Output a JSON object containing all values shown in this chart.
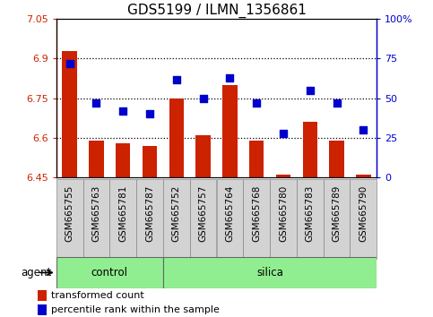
{
  "title": "GDS5199 / ILMN_1356861",
  "samples": [
    "GSM665755",
    "GSM665763",
    "GSM665781",
    "GSM665787",
    "GSM665752",
    "GSM665757",
    "GSM665764",
    "GSM665768",
    "GSM665780",
    "GSM665783",
    "GSM665789",
    "GSM665790"
  ],
  "bar_values": [
    6.93,
    6.59,
    6.58,
    6.57,
    6.75,
    6.61,
    6.8,
    6.59,
    6.46,
    6.66,
    6.59,
    6.46
  ],
  "dot_values_pct": [
    72,
    47,
    42,
    40,
    62,
    50,
    63,
    47,
    28,
    55,
    47,
    30
  ],
  "ylim": [
    6.45,
    7.05
  ],
  "y2lim": [
    0,
    100
  ],
  "y_ticks": [
    6.45,
    6.6,
    6.75,
    6.9,
    7.05
  ],
  "y2_ticks": [
    0,
    25,
    50,
    75,
    100
  ],
  "ytick_labels": [
    "6.45",
    "6.6",
    "6.75",
    "6.9",
    "7.05"
  ],
  "y2tick_labels": [
    "0",
    "25",
    "50",
    "75",
    "100%"
  ],
  "hlines": [
    6.9,
    6.75,
    6.6
  ],
  "bar_color": "#CC2200",
  "dot_color": "#0000CC",
  "bar_bottom": 6.45,
  "control_count": 4,
  "silica_count": 8,
  "control_label": "control",
  "silica_label": "silica",
  "agent_label": "agent",
  "legend_bar_label": "transformed count",
  "legend_dot_label": "percentile rank within the sample",
  "control_color": "#90EE90",
  "silica_color": "#90EE90",
  "xtick_bg_color": "#D3D3D3",
  "title_fontsize": 11,
  "tick_fontsize": 8,
  "label_fontsize": 8.5
}
